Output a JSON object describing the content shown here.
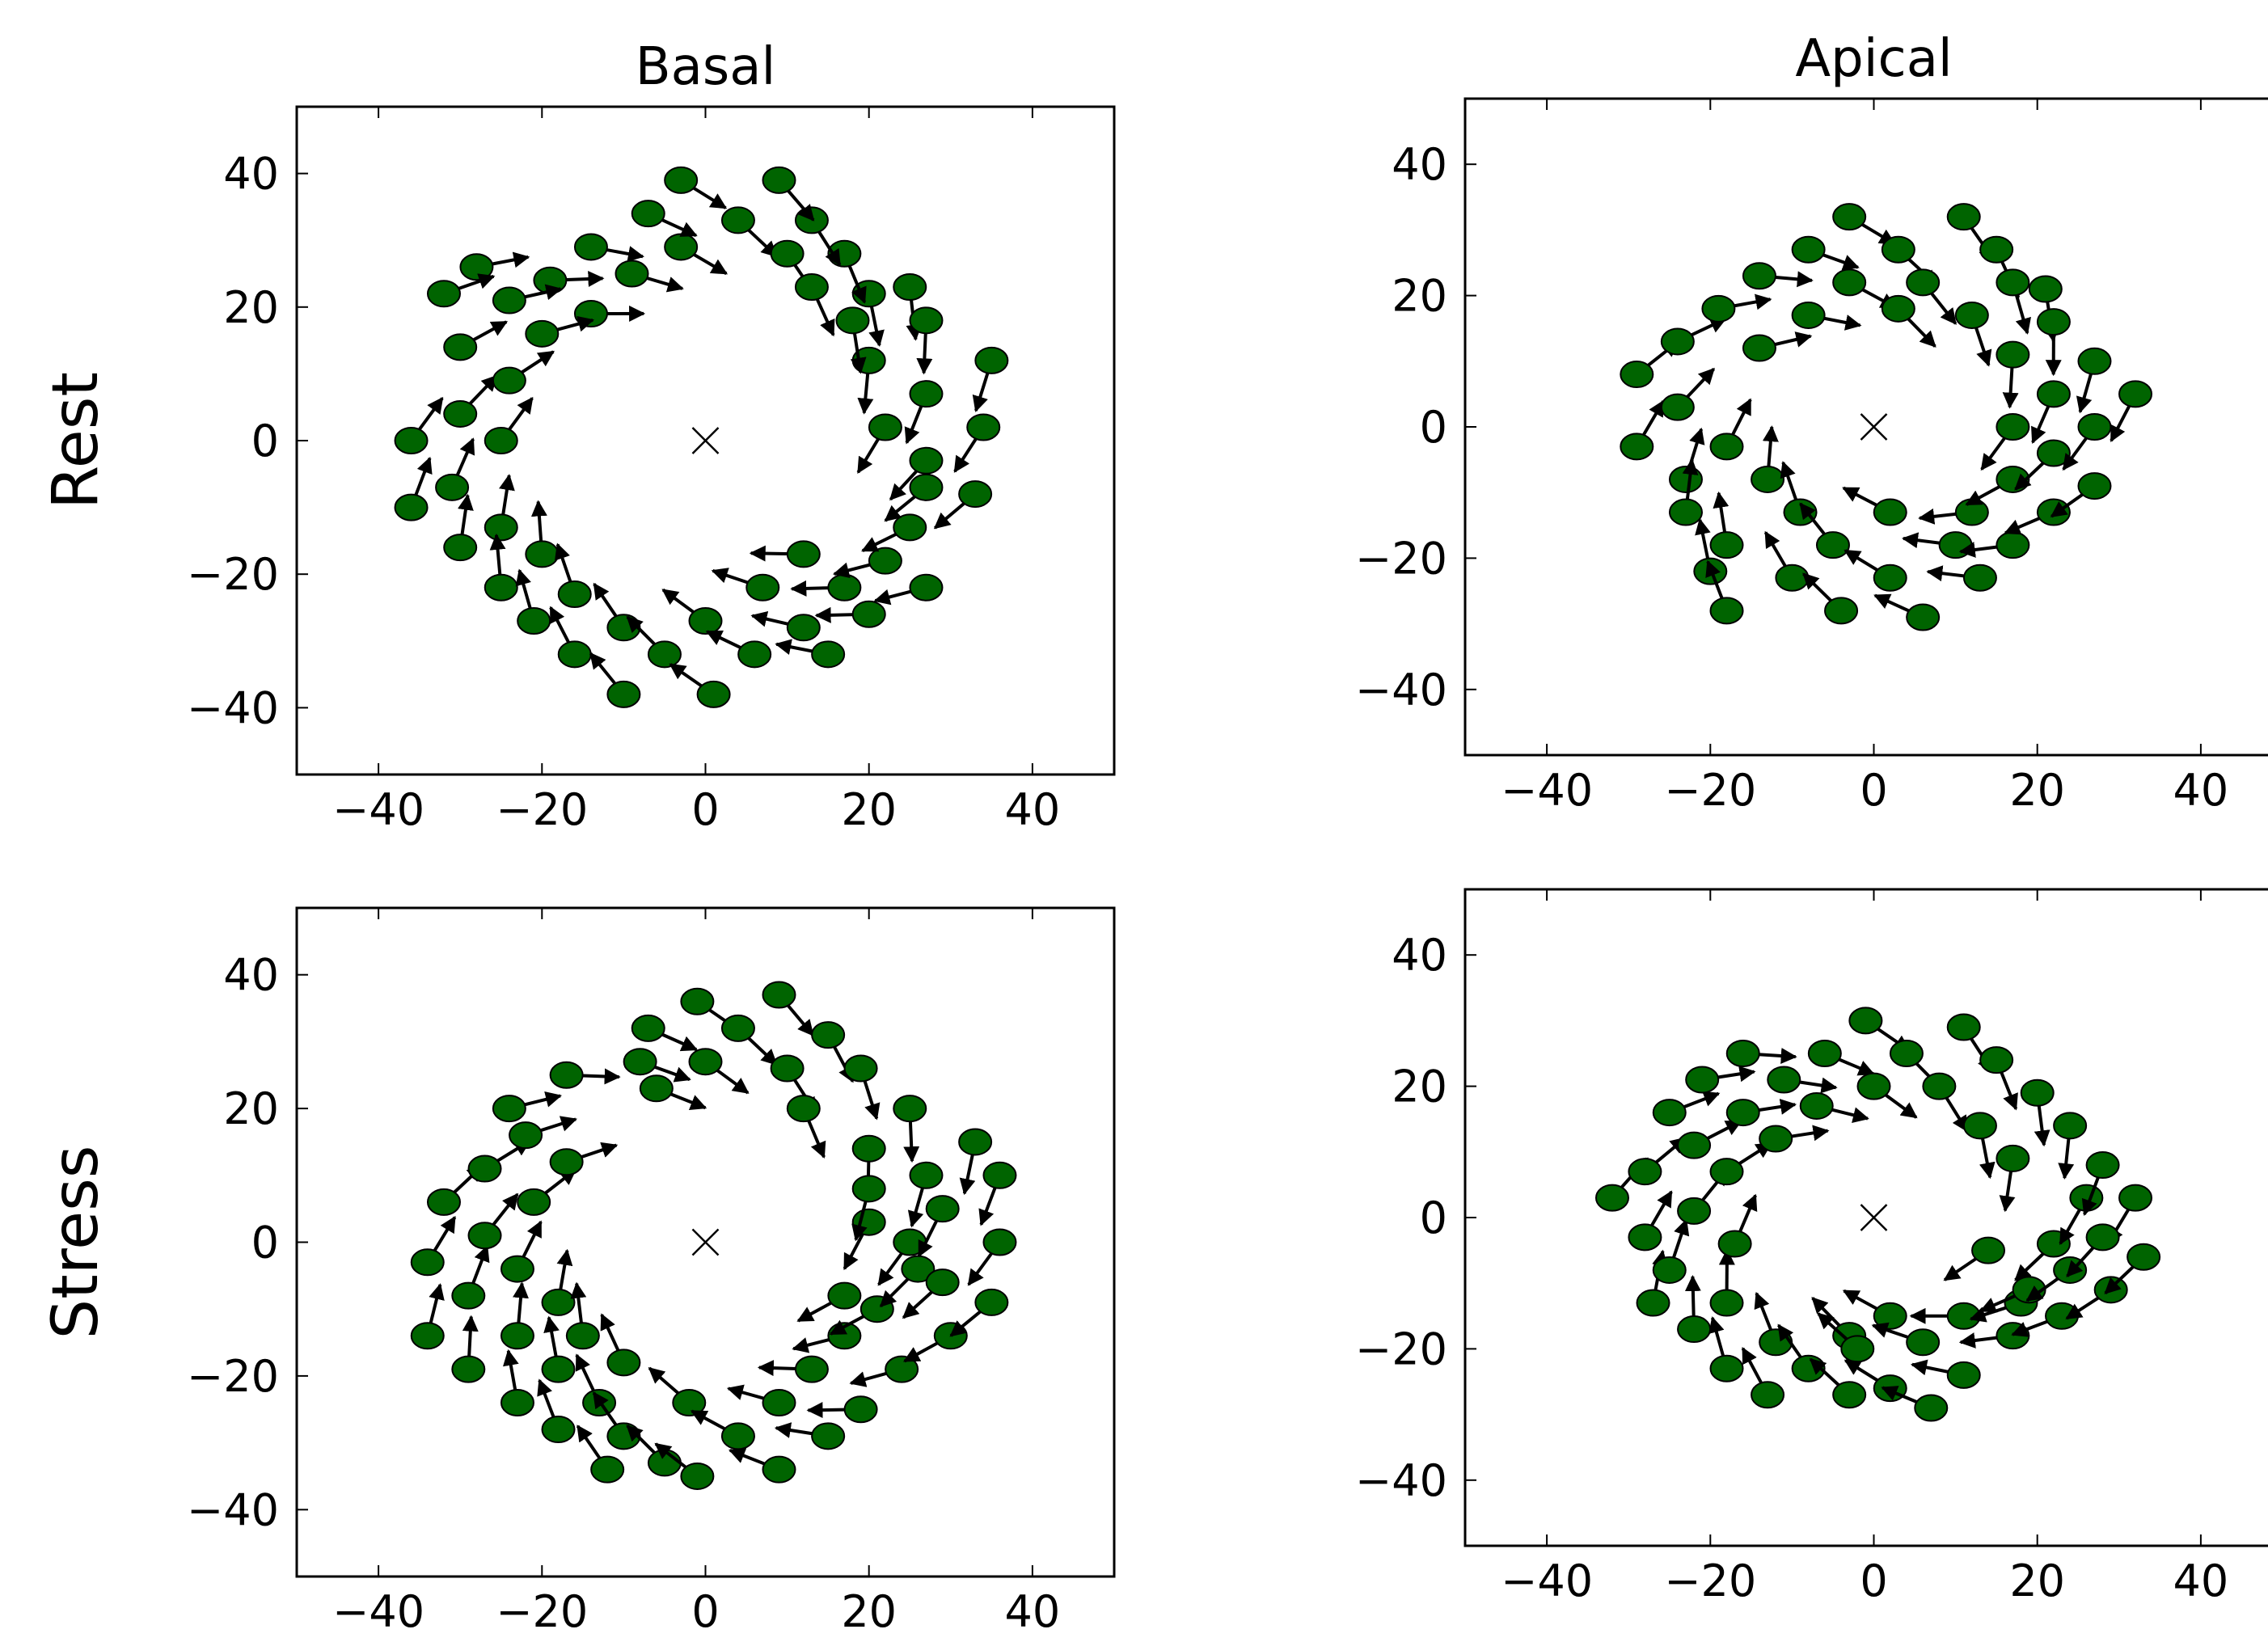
{
  "chart_data": [
    {
      "type": "scatter",
      "title": "Basal",
      "row_label": "Rest",
      "xlim": [
        -50,
        50
      ],
      "ylim": [
        -50,
        50
      ],
      "xticks": [
        -40,
        -20,
        0,
        20,
        40
      ],
      "yticks": [
        -40,
        -20,
        0,
        20,
        40
      ],
      "xtick_labels": [
        "−40",
        "−20",
        "0",
        "20",
        "40"
      ],
      "ytick_labels": [
        "−40",
        "−20",
        "0",
        "20",
        "40"
      ],
      "grid": false,
      "legend": "none",
      "center_marker": [
        0,
        0
      ],
      "points": [
        [
          -36,
          0
        ],
        [
          -36,
          -10
        ],
        [
          -31,
          -7
        ],
        [
          -30,
          -16
        ],
        [
          -30,
          4
        ],
        [
          -25,
          -13
        ],
        [
          -25,
          -22
        ],
        [
          -25,
          0
        ],
        [
          -24,
          9
        ],
        [
          -21,
          -27
        ],
        [
          -20,
          -17
        ],
        [
          -16,
          -23
        ],
        [
          -16,
          -32
        ],
        [
          -10,
          -28
        ],
        [
          -10,
          -38
        ],
        [
          -5,
          -32
        ],
        [
          0,
          -27
        ],
        [
          1,
          -38
        ],
        [
          6,
          -32
        ],
        [
          7,
          -22
        ],
        [
          12,
          -28
        ],
        [
          12,
          -17
        ],
        [
          15,
          -32
        ],
        [
          17,
          -22
        ],
        [
          20,
          -26
        ],
        [
          22,
          -18
        ],
        [
          25,
          -13
        ],
        [
          27,
          -22
        ],
        [
          27,
          -7
        ],
        [
          33,
          -8
        ],
        [
          34,
          2
        ],
        [
          35,
          12
        ],
        [
          27,
          7
        ],
        [
          27,
          -3
        ],
        [
          22,
          2
        ],
        [
          20,
          12
        ],
        [
          18,
          18
        ],
        [
          20,
          22
        ],
        [
          25,
          23
        ],
        [
          27,
          18
        ],
        [
          17,
          28
        ],
        [
          13,
          33
        ],
        [
          9,
          39
        ],
        [
          4,
          33
        ],
        [
          -3,
          39
        ],
        [
          -3,
          29
        ],
        [
          -7,
          34
        ],
        [
          -9,
          25
        ],
        [
          -14,
          29
        ],
        [
          -14,
          19
        ],
        [
          -19,
          24
        ],
        [
          -20,
          16
        ],
        [
          -24,
          21
        ],
        [
          -28,
          26
        ],
        [
          -30,
          14
        ],
        [
          -32,
          22
        ],
        [
          10,
          28
        ],
        [
          13,
          23
        ]
      ],
      "marker_color": "#006400"
    },
    {
      "type": "scatter",
      "title": "Apical",
      "row_label": "",
      "xlim": [
        -50,
        50
      ],
      "ylim": [
        -50,
        50
      ],
      "xticks": [
        -40,
        -20,
        0,
        20,
        40
      ],
      "yticks": [
        -40,
        -20,
        0,
        20,
        40
      ],
      "xtick_labels": [
        "−40",
        "−20",
        "0",
        "20",
        "40"
      ],
      "ytick_labels": [
        "−40",
        "−20",
        "0",
        "20",
        "40"
      ],
      "grid": false,
      "legend": "none",
      "center_marker": [
        0,
        0
      ],
      "points": [
        [
          -29,
          8
        ],
        [
          -29,
          -3
        ],
        [
          -24,
          13
        ],
        [
          -24,
          3
        ],
        [
          -23,
          -8
        ],
        [
          -23,
          -13
        ],
        [
          -20,
          -22
        ],
        [
          -19,
          18
        ],
        [
          -18,
          -3
        ],
        [
          -18,
          -18
        ],
        [
          -18,
          -28
        ],
        [
          -14,
          12
        ],
        [
          -14,
          23
        ],
        [
          -13,
          -8
        ],
        [
          -10,
          -23
        ],
        [
          -9,
          -13
        ],
        [
          -8,
          27
        ],
        [
          -8,
          17
        ],
        [
          -5,
          -18
        ],
        [
          -4,
          -28
        ],
        [
          -3,
          32
        ],
        [
          -3,
          22
        ],
        [
          2,
          -23
        ],
        [
          2,
          -13
        ],
        [
          3,
          18
        ],
        [
          3,
          27
        ],
        [
          6,
          -29
        ],
        [
          6,
          22
        ],
        [
          10,
          -18
        ],
        [
          12,
          17
        ],
        [
          11,
          32
        ],
        [
          12,
          -13
        ],
        [
          13,
          -23
        ],
        [
          15,
          27
        ],
        [
          17,
          22
        ],
        [
          17,
          -18
        ],
        [
          17,
          -8
        ],
        [
          17,
          0
        ],
        [
          17,
          11
        ],
        [
          21,
          21
        ],
        [
          22,
          -13
        ],
        [
          22,
          -4
        ],
        [
          22,
          5
        ],
        [
          22,
          16
        ],
        [
          27,
          10
        ],
        [
          27,
          0
        ],
        [
          27,
          -9
        ],
        [
          32,
          5
        ]
      ],
      "marker_color": "#006400"
    },
    {
      "type": "scatter",
      "title": "",
      "row_label": "Stress",
      "xlim": [
        -50,
        50
      ],
      "ylim": [
        -50,
        50
      ],
      "xticks": [
        -40,
        -20,
        0,
        20,
        40
      ],
      "yticks": [
        -40,
        -20,
        0,
        20,
        40
      ],
      "xtick_labels": [
        "−40",
        "−20",
        "0",
        "20",
        "40"
      ],
      "ytick_labels": [
        "−40",
        "−20",
        "0",
        "20",
        "40"
      ],
      "grid": false,
      "legend": "none",
      "center_marker": [
        0,
        0
      ],
      "points": [
        [
          -34,
          -3
        ],
        [
          -34,
          -14
        ],
        [
          -32,
          6
        ],
        [
          -29,
          -8
        ],
        [
          -29,
          -19
        ],
        [
          -27,
          1
        ],
        [
          -27,
          11
        ],
        [
          -24,
          20
        ],
        [
          -23,
          -24
        ],
        [
          -23,
          -14
        ],
        [
          -23,
          -4
        ],
        [
          -22,
          16
        ],
        [
          -21,
          6
        ],
        [
          -18,
          -28
        ],
        [
          -18,
          -19
        ],
        [
          -18,
          -9
        ],
        [
          -17,
          25
        ],
        [
          -17,
          12
        ],
        [
          -15,
          -14
        ],
        [
          -13,
          -24
        ],
        [
          -12,
          -34
        ],
        [
          -10,
          -18
        ],
        [
          -10,
          -29
        ],
        [
          -8,
          27
        ],
        [
          -7,
          32
        ],
        [
          -5,
          -33
        ],
        [
          -6,
          23
        ],
        [
          -2,
          -24
        ],
        [
          -1,
          36
        ],
        [
          -1,
          -35
        ],
        [
          0,
          27
        ],
        [
          4,
          -29
        ],
        [
          4,
          32
        ],
        [
          9,
          -24
        ],
        [
          9,
          -34
        ],
        [
          9,
          37
        ],
        [
          10,
          26
        ],
        [
          12,
          20
        ],
        [
          13,
          -19
        ],
        [
          15,
          -29
        ],
        [
          15,
          31
        ],
        [
          17,
          -14
        ],
        [
          17,
          -8
        ],
        [
          19,
          -25
        ],
        [
          19,
          26
        ],
        [
          20,
          14
        ],
        [
          20,
          3
        ],
        [
          21,
          -10
        ],
        [
          24,
          -19
        ],
        [
          25,
          0
        ],
        [
          25,
          20
        ],
        [
          26,
          -4
        ],
        [
          27,
          10
        ],
        [
          29,
          -6
        ],
        [
          29,
          5
        ],
        [
          30,
          -14
        ],
        [
          33,
          15
        ],
        [
          35,
          -9
        ],
        [
          36,
          0
        ],
        [
          36,
          10
        ],
        [
          20,
          8
        ]
      ],
      "marker_color": "#006400"
    },
    {
      "type": "scatter",
      "title": "",
      "row_label": "",
      "xlim": [
        -50,
        50
      ],
      "ylim": [
        -50,
        50
      ],
      "xticks": [
        -40,
        -20,
        0,
        20,
        40
      ],
      "yticks": [
        -40,
        -20,
        0,
        20,
        40
      ],
      "xtick_labels": [
        "−40",
        "−20",
        "0",
        "20",
        "40"
      ],
      "ytick_labels": [
        "−40",
        "−20",
        "0",
        "20",
        "40"
      ],
      "grid": false,
      "legend": "none",
      "center_marker": [
        0,
        0
      ],
      "points": [
        [
          -32,
          3
        ],
        [
          -28,
          7
        ],
        [
          -28,
          -3
        ],
        [
          -27,
          -13
        ],
        [
          -25,
          16
        ],
        [
          -25,
          -8
        ],
        [
          -22,
          -17
        ],
        [
          -22,
          11
        ],
        [
          -22,
          1
        ],
        [
          -21,
          21
        ],
        [
          -18,
          -23
        ],
        [
          -18,
          -13
        ],
        [
          -18,
          7
        ],
        [
          -17,
          -4
        ],
        [
          -16,
          16
        ],
        [
          -16,
          25
        ],
        [
          -13,
          -27
        ],
        [
          -12,
          -19
        ],
        [
          -12,
          12
        ],
        [
          -11,
          21
        ],
        [
          -8,
          -23
        ],
        [
          -7,
          17
        ],
        [
          -6,
          25
        ],
        [
          -3,
          -18
        ],
        [
          -3,
          -27
        ],
        [
          -2,
          -20
        ],
        [
          -1,
          30
        ],
        [
          0,
          20
        ],
        [
          2,
          -15
        ],
        [
          2,
          -26
        ],
        [
          4,
          25
        ],
        [
          6,
          -19
        ],
        [
          7,
          -29
        ],
        [
          8,
          20
        ],
        [
          11,
          -15
        ],
        [
          11,
          29
        ],
        [
          11,
          -24
        ],
        [
          13,
          14
        ],
        [
          14,
          -5
        ],
        [
          15,
          24
        ],
        [
          17,
          9
        ],
        [
          17,
          -18
        ],
        [
          18,
          -13
        ],
        [
          19,
          -11
        ],
        [
          20,
          19
        ],
        [
          22,
          -4
        ],
        [
          23,
          -15
        ],
        [
          24,
          14
        ],
        [
          24,
          -8
        ],
        [
          26,
          3
        ],
        [
          28,
          8
        ],
        [
          29,
          -11
        ],
        [
          32,
          3
        ],
        [
          33,
          -6
        ],
        [
          28,
          -3
        ]
      ],
      "marker_color": "#006400"
    }
  ]
}
